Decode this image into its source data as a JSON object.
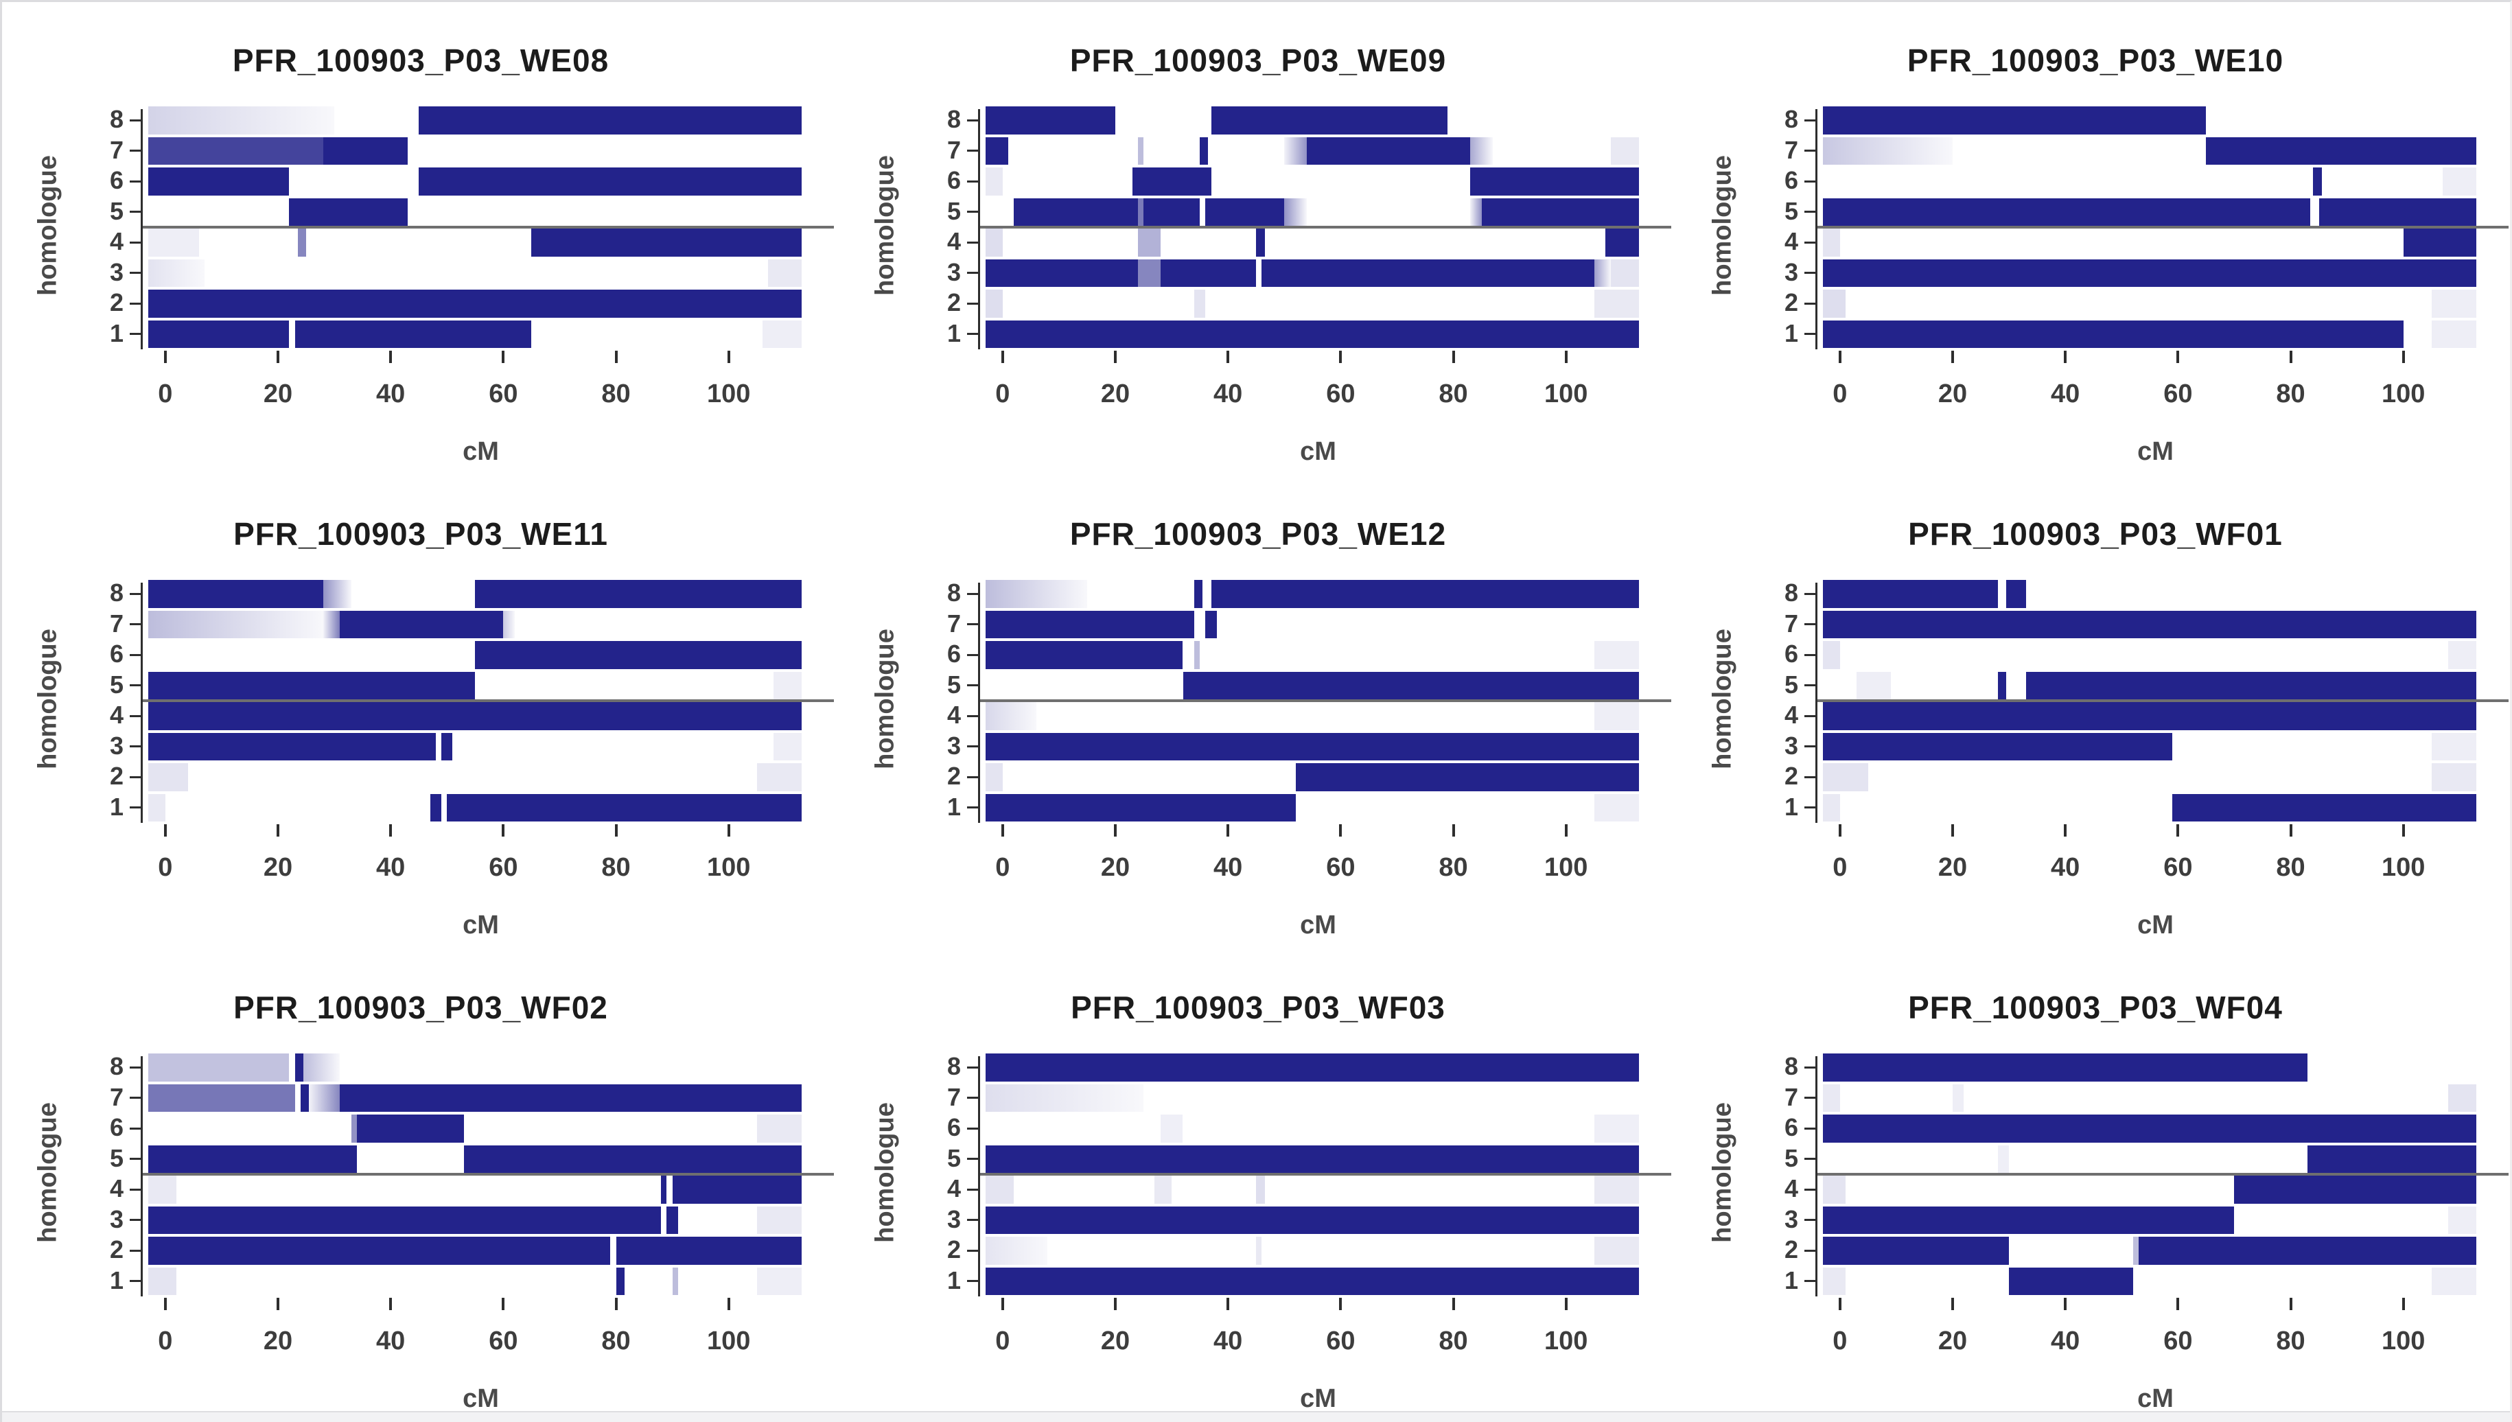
{
  "figure": {
    "xlabel": "cM",
    "ylabel": "homologue",
    "x_ticks": [
      0,
      20,
      40,
      60,
      80,
      100
    ],
    "y_ticks": [
      "1",
      "2",
      "3",
      "4",
      "5",
      "6",
      "7",
      "8"
    ],
    "xlim": [
      -4,
      116
    ],
    "separator_between_homologues": [
      4,
      5
    ],
    "colors": {
      "bar": "#23238b",
      "separator": "#6f6f6f",
      "axis": "#2e2e2e",
      "title_text": "#1c1c1c",
      "tick_text": "#3d3d3d",
      "background": "#ffffff",
      "frame": "#dcdcdf"
    }
  },
  "chart_data": [
    {
      "type": "heatmap",
      "title": "PFR_100903_P03_WE08",
      "rows": {
        "8": [
          [
            -3,
            30,
            0.2,
            "out"
          ],
          [
            45,
            113,
            1
          ]
        ],
        "7": [
          [
            -3,
            28,
            0.85
          ],
          [
            28,
            43,
            1
          ]
        ],
        "6": [
          [
            -3,
            22,
            1
          ],
          [
            45,
            113,
            1
          ]
        ],
        "5": [
          [
            22,
            43,
            1
          ]
        ],
        "4": [
          [
            -3,
            6,
            0.08
          ],
          [
            23.5,
            25,
            0.55
          ],
          [
            65,
            113,
            1
          ]
        ],
        "3": [
          [
            -3,
            7,
            0.13,
            "out"
          ],
          [
            107,
            113,
            0.1
          ]
        ],
        "2": [
          [
            -3,
            113,
            1
          ]
        ],
        "1": [
          [
            -3,
            22,
            1
          ],
          [
            23,
            65,
            1
          ],
          [
            106,
            113,
            0.08
          ]
        ]
      }
    },
    {
      "type": "heatmap",
      "title": "PFR_100903_P03_WE09",
      "rows": {
        "8": [
          [
            -3,
            20,
            1
          ],
          [
            37,
            79,
            1
          ]
        ],
        "7": [
          [
            -3,
            1,
            1
          ],
          [
            24,
            25,
            0.3
          ],
          [
            35,
            36.5,
            1
          ],
          [
            50,
            54,
            0.5,
            "in"
          ],
          [
            54,
            83,
            1
          ],
          [
            83,
            87,
            0.4,
            "out"
          ],
          [
            108,
            113,
            0.1
          ]
        ],
        "6": [
          [
            -3,
            0,
            0.1
          ],
          [
            23,
            37,
            1
          ],
          [
            83,
            113,
            1
          ]
        ],
        "5": [
          [
            2,
            24,
            1
          ],
          [
            24,
            25,
            0.6
          ],
          [
            25,
            35,
            1
          ],
          [
            36,
            50,
            1
          ],
          [
            50,
            54,
            0.5,
            "out"
          ],
          [
            83,
            85,
            0.5,
            "in"
          ],
          [
            85,
            113,
            1
          ]
        ],
        "4": [
          [
            -3,
            0,
            0.15
          ],
          [
            24,
            28,
            0.35
          ],
          [
            45,
            46.5,
            1
          ],
          [
            107,
            113,
            1
          ]
        ],
        "3": [
          [
            -3,
            24,
            1
          ],
          [
            24,
            28,
            0.55
          ],
          [
            28,
            45,
            1
          ],
          [
            46,
            105,
            1
          ],
          [
            105,
            108,
            0.45,
            "out"
          ],
          [
            108,
            113,
            0.12
          ]
        ],
        "2": [
          [
            -3,
            0,
            0.15
          ],
          [
            34,
            36,
            0.12
          ],
          [
            105,
            113,
            0.1
          ]
        ],
        "1": [
          [
            -3,
            113,
            1
          ]
        ]
      }
    },
    {
      "type": "heatmap",
      "title": "PFR_100903_P03_WE10",
      "rows": {
        "8": [
          [
            -3,
            65,
            1
          ]
        ],
        "7": [
          [
            -3,
            20,
            0.25,
            "out"
          ],
          [
            65,
            113,
            1
          ]
        ],
        "6": [
          [
            84,
            85.5,
            1
          ],
          [
            107,
            113,
            0.08
          ]
        ],
        "5": [
          [
            -3,
            83.5,
            1
          ],
          [
            85,
            113,
            1
          ]
        ],
        "4": [
          [
            -3,
            0,
            0.12
          ],
          [
            100,
            113,
            1
          ]
        ],
        "3": [
          [
            -3,
            113,
            1
          ]
        ],
        "2": [
          [
            -3,
            1,
            0.15
          ],
          [
            105,
            113,
            0.08
          ]
        ],
        "1": [
          [
            -3,
            100,
            1
          ],
          [
            105,
            113,
            0.08
          ]
        ]
      }
    },
    {
      "type": "heatmap",
      "title": "PFR_100903_P03_WE11",
      "rows": {
        "8": [
          [
            -3,
            28,
            1
          ],
          [
            28,
            33,
            0.5,
            "out"
          ],
          [
            55,
            113,
            1
          ]
        ],
        "7": [
          [
            -3,
            28,
            0.3,
            "out"
          ],
          [
            28,
            31,
            0.6,
            "in"
          ],
          [
            31,
            60,
            1
          ],
          [
            60,
            62,
            0.25,
            "out"
          ]
        ],
        "6": [
          [
            55,
            113,
            1
          ]
        ],
        "5": [
          [
            -3,
            55,
            1
          ],
          [
            108,
            113,
            0.08
          ]
        ],
        "4": [
          [
            -3,
            113,
            1
          ]
        ],
        "3": [
          [
            -3,
            48,
            1
          ],
          [
            49,
            51,
            1
          ],
          [
            108,
            113,
            0.08
          ]
        ],
        "2": [
          [
            -3,
            4,
            0.12
          ],
          [
            105,
            113,
            0.1
          ]
        ],
        "1": [
          [
            -3,
            0,
            0.1
          ],
          [
            47,
            49,
            1
          ],
          [
            50,
            113,
            1
          ]
        ]
      }
    },
    {
      "type": "heatmap",
      "title": "PFR_100903_P03_WE12",
      "rows": {
        "8": [
          [
            -3,
            15,
            0.3,
            "out"
          ],
          [
            34,
            35.5,
            1
          ],
          [
            37,
            113,
            1
          ]
        ],
        "7": [
          [
            -3,
            34,
            1
          ],
          [
            36,
            38,
            1
          ]
        ],
        "6": [
          [
            -3,
            32,
            1
          ],
          [
            34,
            35,
            0.3
          ],
          [
            105,
            113,
            0.08
          ]
        ],
        "5": [
          [
            32,
            113,
            1
          ]
        ],
        "4": [
          [
            -3,
            6,
            0.18,
            "out"
          ],
          [
            105,
            113,
            0.08
          ]
        ],
        "3": [
          [
            -3,
            113,
            1
          ]
        ],
        "2": [
          [
            -3,
            0,
            0.12
          ],
          [
            52,
            113,
            1
          ]
        ],
        "1": [
          [
            -3,
            52,
            1
          ],
          [
            105,
            113,
            0.08
          ]
        ]
      }
    },
    {
      "type": "heatmap",
      "title": "PFR_100903_P03_WF01",
      "rows": {
        "8": [
          [
            -3,
            28,
            1
          ],
          [
            29.5,
            33,
            1
          ]
        ],
        "7": [
          [
            -3,
            113,
            1
          ]
        ],
        "6": [
          [
            -3,
            0,
            0.12
          ],
          [
            108,
            113,
            0.08
          ]
        ],
        "5": [
          [
            3,
            9,
            0.08
          ],
          [
            28,
            29.5,
            1
          ],
          [
            33,
            113,
            1
          ]
        ],
        "4": [
          [
            -3,
            113,
            1
          ]
        ],
        "3": [
          [
            -3,
            59,
            1
          ],
          [
            105,
            113,
            0.08
          ]
        ],
        "2": [
          [
            -3,
            5,
            0.12
          ],
          [
            105,
            113,
            0.1
          ]
        ],
        "1": [
          [
            -3,
            0,
            0.1
          ],
          [
            59,
            113,
            1
          ]
        ]
      }
    },
    {
      "type": "heatmap",
      "title": "PFR_100903_P03_WF02",
      "rows": {
        "8": [
          [
            -3,
            22,
            0.28
          ],
          [
            23,
            24.5,
            1
          ],
          [
            24.5,
            31,
            0.3,
            "out"
          ]
        ],
        "7": [
          [
            -3,
            23,
            0.62
          ],
          [
            24,
            25.5,
            1
          ],
          [
            25.5,
            31,
            0.55,
            "in"
          ],
          [
            31,
            113,
            1
          ]
        ],
        "6": [
          [
            33,
            34,
            0.5
          ],
          [
            34,
            53,
            1
          ],
          [
            105,
            113,
            0.1
          ]
        ],
        "5": [
          [
            -3,
            34,
            1
          ],
          [
            53,
            113,
            1
          ]
        ],
        "4": [
          [
            -3,
            2,
            0.1
          ],
          [
            88,
            89,
            1
          ],
          [
            90,
            113,
            1
          ]
        ],
        "3": [
          [
            -3,
            88,
            1
          ],
          [
            89,
            91,
            1
          ],
          [
            105,
            113,
            0.1
          ]
        ],
        "2": [
          [
            -3,
            79,
            1
          ],
          [
            80,
            113,
            1
          ]
        ],
        "1": [
          [
            -3,
            2,
            0.12
          ],
          [
            80,
            81.5,
            1
          ],
          [
            90,
            91,
            0.3
          ],
          [
            105,
            113,
            0.08
          ]
        ]
      }
    },
    {
      "type": "heatmap",
      "title": "PFR_100903_P03_WF03",
      "rows": {
        "8": [
          [
            -3,
            113,
            1
          ]
        ],
        "7": [
          [
            -3,
            25,
            0.15,
            "out"
          ]
        ],
        "6": [
          [
            28,
            32,
            0.07
          ],
          [
            105,
            113,
            0.07
          ]
        ],
        "5": [
          [
            -3,
            113,
            1
          ]
        ],
        "4": [
          [
            -3,
            2,
            0.12
          ],
          [
            27,
            30,
            0.1
          ],
          [
            45,
            46.5,
            0.15
          ],
          [
            105,
            113,
            0.1
          ]
        ],
        "3": [
          [
            -3,
            113,
            1
          ]
        ],
        "2": [
          [
            -3,
            8,
            0.12,
            "out"
          ],
          [
            45,
            46,
            0.1
          ],
          [
            105,
            113,
            0.1
          ]
        ],
        "1": [
          [
            -3,
            113,
            1
          ]
        ]
      }
    },
    {
      "type": "heatmap",
      "title": "PFR_100903_P03_WF04",
      "rows": {
        "8": [
          [
            -3,
            83,
            1
          ]
        ],
        "7": [
          [
            -3,
            0,
            0.1
          ],
          [
            20,
            22,
            0.08
          ],
          [
            108,
            113,
            0.12
          ]
        ],
        "6": [
          [
            -3,
            113,
            1
          ]
        ],
        "5": [
          [
            28,
            30,
            0.07
          ],
          [
            83,
            113,
            1
          ]
        ],
        "4": [
          [
            -3,
            1,
            0.12
          ],
          [
            70,
            113,
            1
          ]
        ],
        "3": [
          [
            -3,
            70,
            1
          ],
          [
            108,
            113,
            0.08
          ]
        ],
        "2": [
          [
            -3,
            30,
            1
          ],
          [
            52,
            53,
            0.3
          ],
          [
            53,
            113,
            1
          ]
        ],
        "1": [
          [
            -3,
            1,
            0.1
          ],
          [
            30,
            52,
            1
          ],
          [
            105,
            113,
            0.08
          ]
        ]
      }
    }
  ]
}
